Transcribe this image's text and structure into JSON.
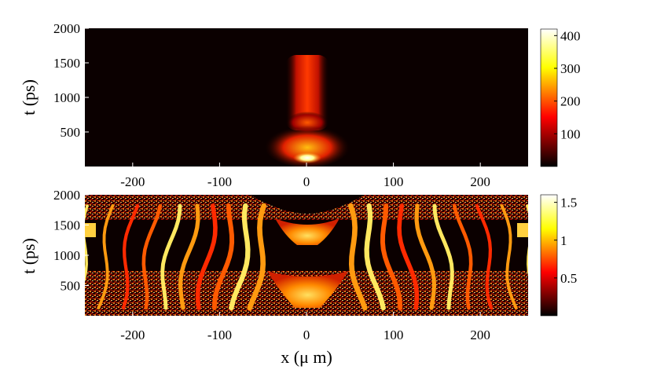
{
  "chart_data": [
    {
      "type": "heatmap",
      "xlabel": "",
      "ylabel": "t (ps)",
      "x_ticks": [
        -200,
        -100,
        0,
        100,
        200
      ],
      "y_ticks": [
        500,
        1000,
        1500,
        2000
      ],
      "xlim": [
        -255,
        255
      ],
      "ylim": [
        0,
        2000
      ],
      "colormap": "hot",
      "colorbar": {
        "ticks": [
          100,
          200,
          300,
          400
        ],
        "range": [
          0,
          420
        ]
      },
      "features": [
        {
          "x": 0,
          "t": 100,
          "value": 420
        },
        {
          "x": 0,
          "t": 320,
          "value": 280
        },
        {
          "x": 0,
          "t": 650,
          "value": 230
        },
        {
          "x": 0,
          "t": 1000,
          "value": 180
        },
        {
          "x": 0,
          "t": 1450,
          "value": 170
        }
      ]
    },
    {
      "type": "heatmap",
      "xlabel": "x (μ m)",
      "ylabel": "t (ps)",
      "x_ticks": [
        -200,
        -100,
        0,
        100,
        200
      ],
      "y_ticks": [
        500,
        1000,
        1500,
        2000
      ],
      "xlim": [
        -255,
        255
      ],
      "ylim": [
        0,
        2000
      ],
      "colormap": "hot",
      "colorbar": {
        "ticks": [
          "0.5",
          "1",
          "1.5"
        ],
        "range": [
          0,
          1.6
        ]
      }
    }
  ],
  "labels": {
    "top_ylabel": "t (ps)",
    "bottom_ylabel": "t (ps)",
    "xlabel": "x (μ m)"
  }
}
